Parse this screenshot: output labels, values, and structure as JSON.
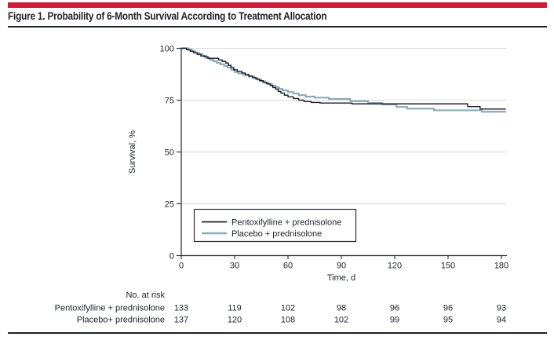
{
  "figure": {
    "title": "Figure 1. Probability of 6-Month Survival According to Treatment Allocation",
    "accent_color": "#D01A39",
    "rule_color": "#1d2028"
  },
  "chart_data": {
    "type": "line",
    "subtype": "kaplan-meier-step",
    "title": "",
    "xlabel": "Time, d",
    "ylabel": "Survival, %",
    "xlim": [
      0,
      180
    ],
    "ylim": [
      0,
      100
    ],
    "xticks": [
      0,
      30,
      60,
      90,
      120,
      150,
      180
    ],
    "yticks": [
      0,
      25,
      50,
      75,
      100
    ],
    "grid": "horizontal",
    "legend_position": "inside-bottom-left",
    "colors": {
      "axis": "#23262e",
      "grid": "#dbdbdb",
      "text": "#20242e"
    },
    "series": [
      {
        "name": "Pentoxifylline + prednisolone",
        "color": "#1b1e26",
        "width": 1.4,
        "points": [
          [
            0,
            100
          ],
          [
            3,
            99.3
          ],
          [
            5,
            98.6
          ],
          [
            7,
            97.8
          ],
          [
            9,
            97.1
          ],
          [
            11,
            96.3
          ],
          [
            13,
            95.9
          ],
          [
            15,
            95.2
          ],
          [
            21,
            94.4
          ],
          [
            23,
            93.7
          ],
          [
            25,
            92.9
          ],
          [
            26.5,
            91.8
          ],
          [
            28,
            90.7
          ],
          [
            29.5,
            89.6
          ],
          [
            31.5,
            88.9
          ],
          [
            34,
            88.1
          ],
          [
            36,
            87.4
          ],
          [
            38,
            86.6
          ],
          [
            40,
            85.9
          ],
          [
            42,
            85.1
          ],
          [
            44,
            84.4
          ],
          [
            46,
            83.6
          ],
          [
            48,
            82.9
          ],
          [
            50,
            82.1
          ],
          [
            51.5,
            81.1
          ],
          [
            53,
            80.3
          ],
          [
            54.5,
            79.2
          ],
          [
            56,
            78.4
          ],
          [
            58,
            77.4
          ],
          [
            60,
            76.6
          ],
          [
            63,
            75.8
          ],
          [
            66,
            75.0
          ],
          [
            69,
            74.3
          ],
          [
            73,
            73.9
          ],
          [
            78,
            73.6
          ],
          [
            96,
            73.2
          ],
          [
            161,
            71.9
          ],
          [
            168,
            70.7
          ],
          [
            182.5,
            70.7
          ]
        ]
      },
      {
        "name": "Placebo + prednisolone",
        "color": "#8caab8",
        "width": 2.2,
        "points": [
          [
            0,
            100
          ],
          [
            4,
            99.3
          ],
          [
            6,
            98.5
          ],
          [
            8,
            97.8
          ],
          [
            10,
            97.1
          ],
          [
            12,
            96.4
          ],
          [
            14,
            95.3
          ],
          [
            16,
            94.5
          ],
          [
            18,
            93.8
          ],
          [
            20,
            93.0
          ],
          [
            22,
            92.3
          ],
          [
            24,
            91.6
          ],
          [
            26,
            90.8
          ],
          [
            28,
            89.7
          ],
          [
            30,
            88.6
          ],
          [
            32,
            87.9
          ],
          [
            35,
            87.1
          ],
          [
            38,
            86.4
          ],
          [
            41,
            85.6
          ],
          [
            43,
            84.9
          ],
          [
            45,
            84.1
          ],
          [
            47,
            83.4
          ],
          [
            49,
            82.7
          ],
          [
            51,
            81.9
          ],
          [
            53,
            81.2
          ],
          [
            55,
            80.4
          ],
          [
            57,
            79.7
          ],
          [
            60,
            78.9
          ],
          [
            63,
            78.2
          ],
          [
            66,
            77.4
          ],
          [
            70,
            76.7
          ],
          [
            75,
            76.2
          ],
          [
            83,
            75.6
          ],
          [
            95,
            74.5
          ],
          [
            105,
            73.7
          ],
          [
            113,
            72.9
          ],
          [
            121,
            71.7
          ],
          [
            127,
            70.9
          ],
          [
            142,
            70.1
          ],
          [
            169,
            69.4
          ],
          [
            182.5,
            69.4
          ]
        ]
      }
    ],
    "at_risk": {
      "header": "No. at risk",
      "times": [
        0,
        30,
        60,
        90,
        120,
        150,
        180
      ],
      "rows": [
        {
          "label": "Pentoxifylline + prednisolone",
          "values": [
            133,
            119,
            102,
            98,
            96,
            96,
            93
          ]
        },
        {
          "label": "Placebo+ prednisolone",
          "values": [
            137,
            120,
            108,
            102,
            99,
            95,
            94
          ]
        }
      ]
    }
  }
}
